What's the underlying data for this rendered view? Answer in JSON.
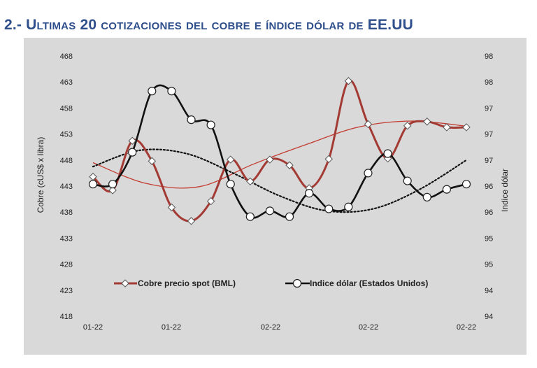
{
  "page": {
    "title": "2.- Ultimas 20 cotizaciones del cobre e índice dólar de EE.UU"
  },
  "colors": {
    "background": "#d9d9d9",
    "copper": "#a33a34",
    "dollar": "#111111",
    "title": "#2f4f8c"
  },
  "chart_data": {
    "type": "line",
    "title": "",
    "x": [
      "01-22",
      "01-22",
      "01-22",
      "01-22",
      "01-22",
      "01-22",
      "01-22",
      "01-22",
      "01-22",
      "01-22",
      "02-22",
      "02-22",
      "02-22",
      "02-22",
      "02-22",
      "02-22",
      "02-22",
      "02-22",
      "02-22",
      "02-22"
    ],
    "x_tick_labels": [
      "01-22",
      "01-22",
      "02-22",
      "02-22",
      "02-22"
    ],
    "ylabel": "Cobre (cUS$ x libra)",
    "ylabel_right": "Indice dólar",
    "ylim": [
      418,
      468
    ],
    "yticks": [
      468,
      463,
      458,
      453,
      448,
      443,
      438,
      433,
      428,
      423,
      418
    ],
    "y2lim": [
      94,
      98
    ],
    "y2_tick_labels": [
      "98",
      "98",
      "97",
      "97",
      "97",
      "96",
      "96",
      "95",
      "95",
      "94",
      "94"
    ],
    "series": [
      {
        "name": "Cobre precio spot (BML)",
        "axis": "left",
        "color": "#a33a34",
        "marker": "diamond",
        "values": [
          444.8,
          442.2,
          451.7,
          447.8,
          438.9,
          436.3,
          440.1,
          448.1,
          443.9,
          448.1,
          447.0,
          442.6,
          448.2,
          463.2,
          454.9,
          448.3,
          454.6,
          455.4,
          454.3,
          454.3
        ]
      },
      {
        "name": "Indice dólar (Estados Unidos)",
        "axis": "right",
        "color": "#111111",
        "marker": "circle",
        "values": [
          96.03,
          96.03,
          96.52,
          97.46,
          97.46,
          97.02,
          96.94,
          96.03,
          95.53,
          95.62,
          95.53,
          95.89,
          95.65,
          95.68,
          96.2,
          96.5,
          96.08,
          95.83,
          95.95,
          96.03
        ]
      }
    ],
    "trendlines": [
      {
        "series": "Cobre precio spot (BML)",
        "style": "solid",
        "color": "#c43b30",
        "values": [
          447.5,
          443.5,
          442.9,
          447.2,
          451.0,
          454.4,
          455.5,
          454.5
        ]
      },
      {
        "series": "Indice dólar (Estados Unidos)",
        "style": "dotted",
        "color": "#111111",
        "values": [
          96.3,
          96.55,
          96.5,
          96.2,
          95.85,
          95.62,
          95.65,
          95.95,
          96.4
        ]
      }
    ],
    "grid": false,
    "legend": "bottom"
  }
}
